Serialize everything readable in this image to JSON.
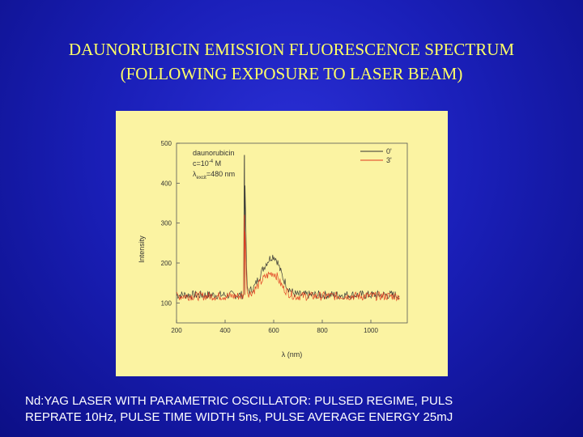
{
  "slide": {
    "title_line1": "DAUNORUBICIN EMISSION FLUORESCENCE SPECTRUM",
    "title_line2": "(FOLLOWING EXPOSURE TO LASER BEAM)",
    "caption_line1": "Nd:YAG LASER WITH PARAMETRIC OSCILLATOR: PULSED REGIME, PULS",
    "caption_line2": "REPRATE 10Hz, PULSE TIME WIDTH  5ns, PULSE AVERAGE ENERGY  25mJ"
  },
  "colors": {
    "title": "#ffff66",
    "caption": "#ffffff",
    "panel": "#fbf3a2",
    "series_0": "#333333",
    "series_3": "#e03a1e"
  },
  "chart_data": {
    "type": "line",
    "title": "",
    "xlabel": "λ (nm)",
    "ylabel": "Intensity",
    "xlim": [
      200,
      1150
    ],
    "ylim": [
      50,
      500
    ],
    "xticks": [
      200,
      400,
      600,
      800,
      1000
    ],
    "yticks": [
      100,
      200,
      300,
      400,
      500
    ],
    "annotation": {
      "compound": "daunorubicin",
      "conc_text": "c=10",
      "conc_exp": "-4",
      "conc_unit": " M",
      "lambda": "λ",
      "lambda_sub": "excit",
      "lambda_val": "=480 nm"
    },
    "legend_position": "top-right",
    "baseline": 120,
    "series": [
      {
        "name": "0'",
        "color": "#333333",
        "excitation_spike": {
          "x": 480,
          "peak": 470
        },
        "points": [
          [
            480,
            470
          ],
          [
            490,
            135
          ],
          [
            500,
            128
          ],
          [
            520,
            140
          ],
          [
            540,
            165
          ],
          [
            560,
            190
          ],
          [
            575,
            205
          ],
          [
            585,
            212
          ],
          [
            595,
            218
          ],
          [
            605,
            215
          ],
          [
            615,
            205
          ],
          [
            625,
            185
          ],
          [
            640,
            160
          ],
          [
            660,
            138
          ],
          [
            680,
            125
          ],
          [
            700,
            120
          ]
        ]
      },
      {
        "name": "3'",
        "color": "#e03a1e",
        "excitation_spike": {
          "x": 480,
          "peak": 320
        },
        "points": [
          [
            480,
            320
          ],
          [
            490,
            132
          ],
          [
            500,
            126
          ],
          [
            520,
            135
          ],
          [
            540,
            150
          ],
          [
            560,
            165
          ],
          [
            575,
            172
          ],
          [
            585,
            176
          ],
          [
            595,
            178
          ],
          [
            605,
            176
          ],
          [
            615,
            168
          ],
          [
            625,
            155
          ],
          [
            640,
            140
          ],
          [
            660,
            128
          ],
          [
            680,
            122
          ],
          [
            700,
            118
          ]
        ]
      }
    ]
  }
}
